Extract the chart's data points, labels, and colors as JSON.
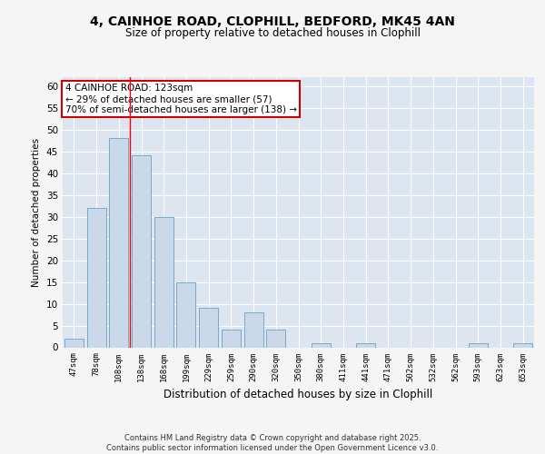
{
  "title1": "4, CAINHOE ROAD, CLOPHILL, BEDFORD, MK45 4AN",
  "title2": "Size of property relative to detached houses in Clophill",
  "xlabel": "Distribution of detached houses by size in Clophill",
  "ylabel": "Number of detached properties",
  "categories": [
    "47sqm",
    "78sqm",
    "108sqm",
    "138sqm",
    "168sqm",
    "199sqm",
    "229sqm",
    "259sqm",
    "290sqm",
    "320sqm",
    "350sqm",
    "380sqm",
    "411sqm",
    "441sqm",
    "471sqm",
    "502sqm",
    "532sqm",
    "562sqm",
    "593sqm",
    "623sqm",
    "653sqm"
  ],
  "values": [
    2,
    32,
    48,
    44,
    30,
    15,
    9,
    4,
    8,
    4,
    0,
    1,
    0,
    1,
    0,
    0,
    0,
    0,
    1,
    0,
    1
  ],
  "bar_color": "#c9d9ea",
  "bar_edge_color": "#7aaac8",
  "background_color": "#dde6f0",
  "grid_color": "#ffffff",
  "annotation_box_text": "4 CAINHOE ROAD: 123sqm\n← 29% of detached houses are smaller (57)\n70% of semi-detached houses are larger (138) →",
  "annotation_box_color": "#ffffff",
  "annotation_box_edge_color": "#cc0000",
  "red_line_x": 2.5,
  "ylim": [
    0,
    62
  ],
  "yticks": [
    0,
    5,
    10,
    15,
    20,
    25,
    30,
    35,
    40,
    45,
    50,
    55,
    60
  ],
  "footer_line1": "Contains HM Land Registry data © Crown copyright and database right 2025.",
  "footer_line2": "Contains public sector information licensed under the Open Government Licence v3.0."
}
